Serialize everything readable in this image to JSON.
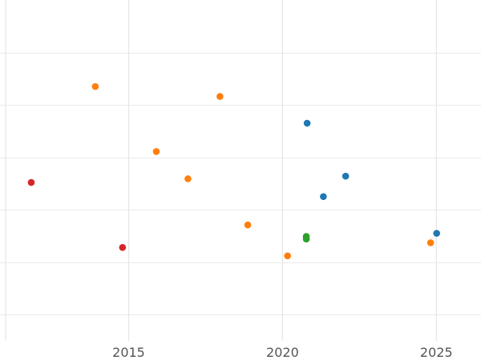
{
  "chart_data": {
    "type": "scatter",
    "title": "",
    "xlabel": "",
    "ylabel": "",
    "x_axis": {
      "type": "date",
      "range": [
        "2011-01-01",
        "2026-06-15"
      ],
      "ticks": [
        {
          "label": "2015",
          "value": "2015-01-01"
        },
        {
          "label": "2020",
          "value": "2020-01-01"
        },
        {
          "label": "2025",
          "value": "2025-01-01"
        }
      ]
    },
    "y_axis": {
      "range": [
        0,
        65
      ],
      "tick_values": [
        5,
        15,
        25,
        35,
        45,
        55
      ],
      "tick_labels_visible": false
    },
    "grid": true,
    "series": [
      {
        "color": "#1f77b4",
        "points": [
          {
            "x": "2020-10-20",
            "y": 41.5
          },
          {
            "x": "2022-01-20",
            "y": 31.4
          },
          {
            "x": "2021-05-01",
            "y": 27.5
          },
          {
            "x": "2025-01-05",
            "y": 20.5
          }
        ]
      },
      {
        "color": "#ff7f0e",
        "points": [
          {
            "x": "2013-12-01",
            "y": 48.5
          },
          {
            "x": "2017-12-20",
            "y": 46.6
          },
          {
            "x": "2015-11-25",
            "y": 36.1
          },
          {
            "x": "2016-12-05",
            "y": 30.9
          },
          {
            "x": "2018-11-15",
            "y": 22.1
          },
          {
            "x": "2020-03-01",
            "y": 16.2
          },
          {
            "x": "2024-10-25",
            "y": 18.7
          }
        ]
      },
      {
        "color": "#2ca02c",
        "points": [
          {
            "x": "2020-10-10",
            "y": 19.9
          },
          {
            "x": "2020-10-10",
            "y": 19.4
          }
        ]
      },
      {
        "color": "#d62728",
        "points": [
          {
            "x": "2011-11-01",
            "y": 30.2
          },
          {
            "x": "2014-10-20",
            "y": 17.8
          }
        ]
      }
    ]
  }
}
